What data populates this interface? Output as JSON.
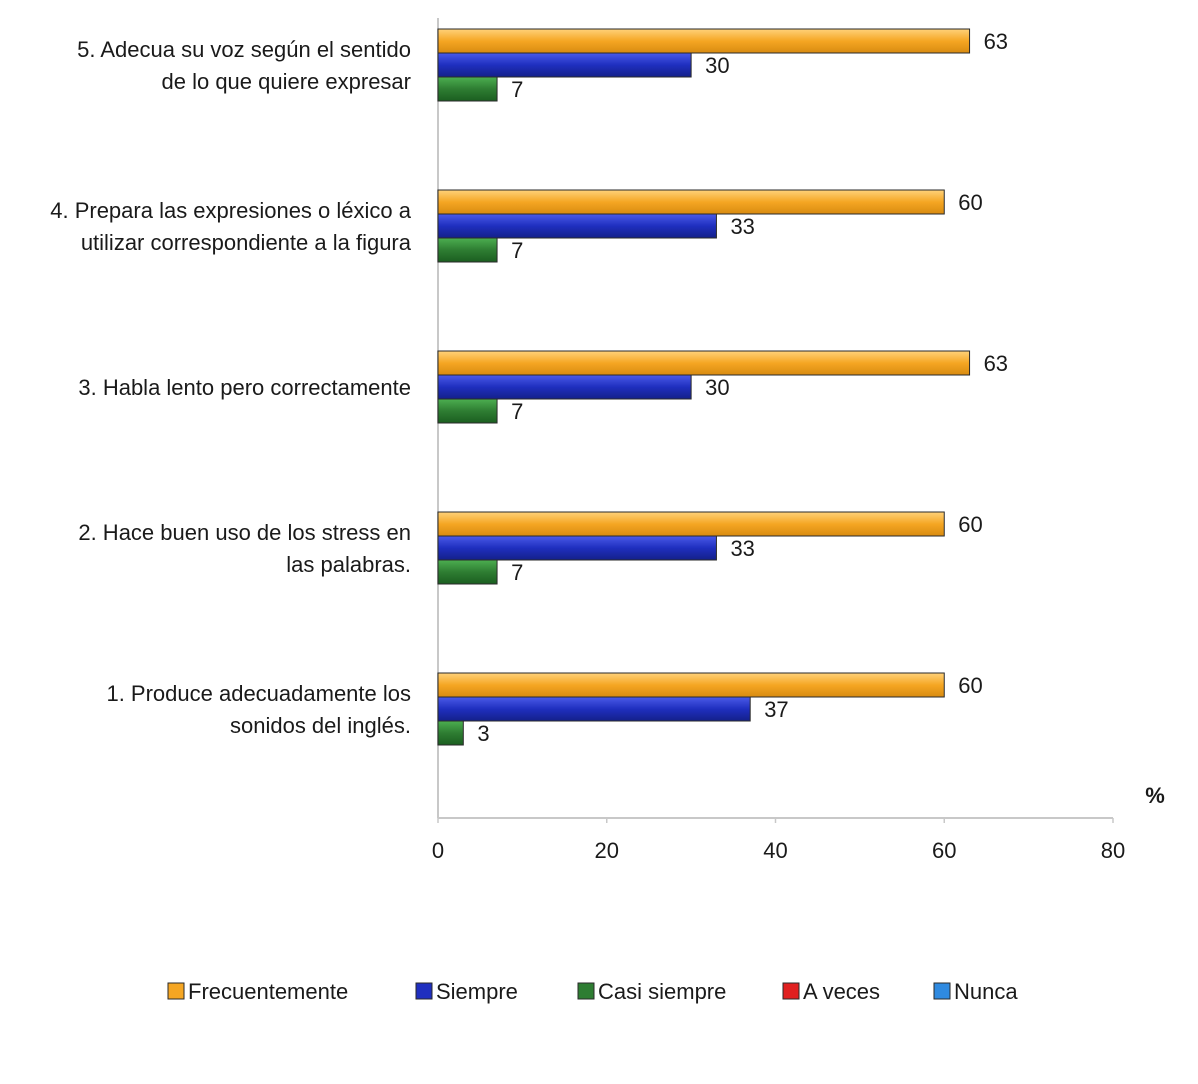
{
  "chart_data": {
    "type": "bar",
    "orientation": "horizontal",
    "categories": [
      [
        "1.  Produce adecuadamente los",
        "sonidos del  inglés."
      ],
      [
        "2.  Hace buen uso de los stress en",
        "las palabras."
      ],
      [
        "3.  Habla lento pero correctamente"
      ],
      [
        "4. Prepara las expresiones o léxico a",
        "utilizar correspondiente a la figura"
      ],
      [
        "5. Adecua su voz según el sentido",
        "de lo que quiere expresar"
      ]
    ],
    "series": [
      {
        "name": "Frecuentemente",
        "color": "#f5a623",
        "values": [
          60,
          60,
          63,
          60,
          63
        ]
      },
      {
        "name": "Siempre",
        "color": "#1f2fbf",
        "values": [
          37,
          33,
          30,
          33,
          30
        ]
      },
      {
        "name": "Casi siempre",
        "color": "#2e7d32",
        "values": [
          3,
          7,
          7,
          7,
          7
        ]
      },
      {
        "name": "A veces",
        "color": "#e02020",
        "values": [
          0,
          0,
          0,
          0,
          0
        ]
      },
      {
        "name": "Nunca",
        "color": "#2f8ae0",
        "values": [
          0,
          0,
          0,
          0,
          0
        ]
      }
    ],
    "x_ticks": [
      "0",
      "20",
      "40",
      "60",
      "80"
    ],
    "xlim": [
      0,
      80
    ],
    "unit_label": "%",
    "legend_position": "bottom",
    "grid": false
  }
}
